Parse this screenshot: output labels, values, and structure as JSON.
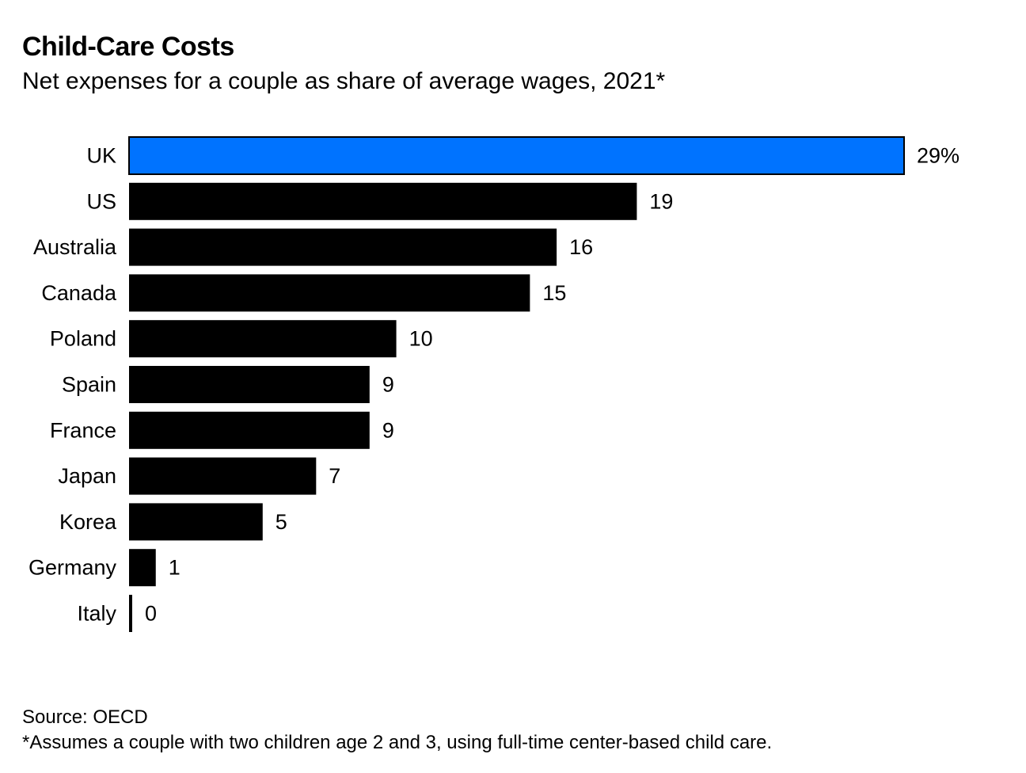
{
  "header": {
    "title": "Child-Care Costs",
    "subtitle": "Net expenses for a couple as share of average wages, 2021*"
  },
  "footer": {
    "source": "Source: OECD",
    "footnote": "*Assumes a couple with two children age 2 and 3, using full-time center-based child care."
  },
  "colors": {
    "highlight": "#0073ff",
    "default": "#000000"
  },
  "chart_data": {
    "type": "bar",
    "orientation": "horizontal",
    "title": "Child-Care Costs",
    "subtitle": "Net expenses for a couple as share of average wages, 2021*",
    "categories": [
      "UK",
      "US",
      "Australia",
      "Canada",
      "Poland",
      "Spain",
      "France",
      "Japan",
      "Korea",
      "Germany",
      "Italy"
    ],
    "values": [
      29,
      19,
      16,
      15,
      10,
      9,
      9,
      7,
      5,
      1,
      0
    ],
    "value_labels": [
      "29%",
      "19",
      "16",
      "15",
      "10",
      "9",
      "9",
      "7",
      "5",
      "1",
      "0"
    ],
    "highlight": "UK",
    "unit": "%",
    "xlim": [
      0,
      29
    ],
    "grid": false,
    "legend": "none"
  }
}
